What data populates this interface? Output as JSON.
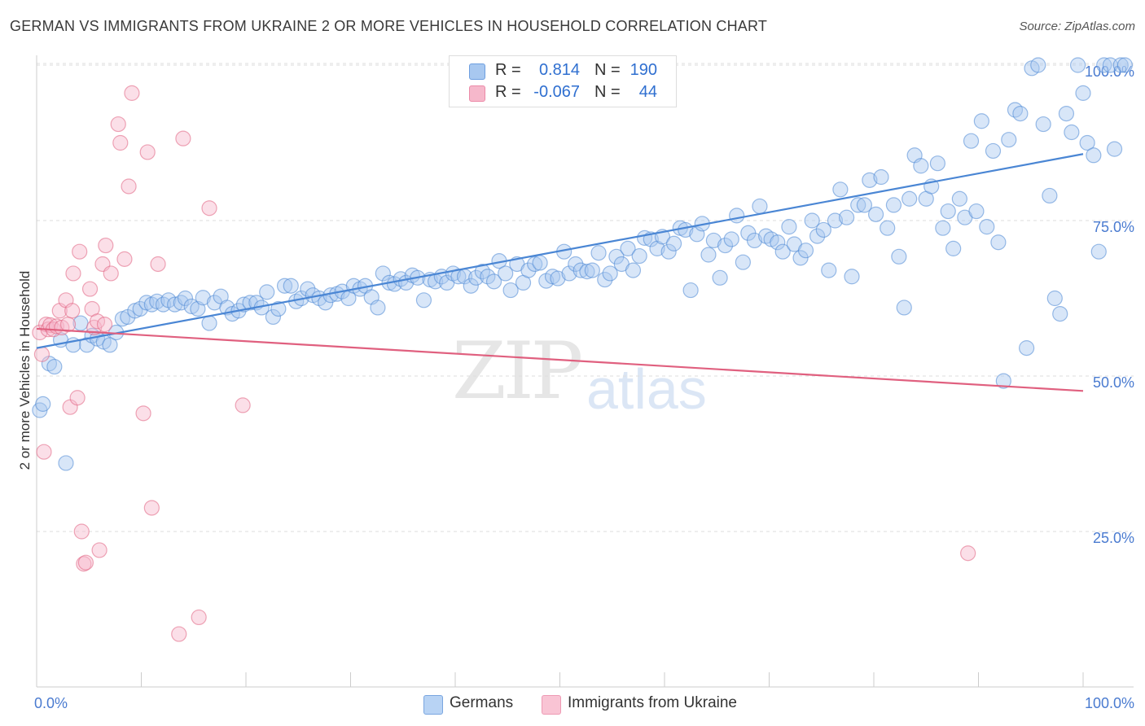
{
  "title": "GERMAN VS IMMIGRANTS FROM UKRAINE 2 OR MORE VEHICLES IN HOUSEHOLD CORRELATION CHART",
  "source": "Source: ZipAtlas.com",
  "watermark": {
    "zip": "ZIP",
    "atlas": "atlas"
  },
  "legend": {
    "rows": [
      {
        "r_label": "R =",
        "r_value": "0.814",
        "n_label": "N =",
        "n_value": "190",
        "color": "#a8c8f0"
      },
      {
        "r_label": "R =",
        "r_value": "-0.067",
        "n_label": "N =",
        "n_value": "44",
        "color": "#f6b8cb"
      }
    ]
  },
  "bottom_legend": [
    {
      "label": "Germans",
      "color": "#b8d3f4"
    },
    {
      "label": "Immigrants from Ukraine",
      "color": "#f9c4d4"
    }
  ],
  "chart_data": {
    "type": "scatter",
    "title": "GERMAN VS IMMIGRANTS FROM UKRAINE 2 OR MORE VEHICLES IN HOUSEHOLD CORRELATION CHART",
    "ylabel": "2 or more Vehicles in Household",
    "xlim": [
      0,
      100
    ],
    "ylim": [
      0,
      102
    ],
    "x_ticks": [
      "0.0%",
      "100.0%"
    ],
    "y_ticks": [
      {
        "value": 25,
        "label": "25.0%"
      },
      {
        "value": 50,
        "label": "50.0%"
      },
      {
        "value": 75,
        "label": "75.0%"
      },
      {
        "value": 100,
        "label": "100.0%"
      }
    ],
    "grid": true,
    "series": [
      {
        "name": "Germans",
        "color": "#4a86d4",
        "fill": "#a8c8f0",
        "trend": {
          "x": [
            0,
            100
          ],
          "y": [
            54.5,
            85.7
          ]
        },
        "points": [
          [
            0.3,
            44.5
          ],
          [
            0.6,
            45.5
          ],
          [
            1.2,
            52
          ],
          [
            1.7,
            51.5
          ],
          [
            2.3,
            55.8
          ],
          [
            2.8,
            36
          ],
          [
            3.5,
            55
          ],
          [
            4.2,
            58.5
          ],
          [
            4.8,
            55
          ],
          [
            5.3,
            56.5
          ],
          [
            5.8,
            56
          ],
          [
            6.4,
            55.5
          ],
          [
            7.0,
            55
          ],
          [
            7.6,
            57
          ],
          [
            8.2,
            59.2
          ],
          [
            8.7,
            59.5
          ],
          [
            9.4,
            60.5
          ],
          [
            9.9,
            60.8
          ],
          [
            10.5,
            61.8
          ],
          [
            11.0,
            61.5
          ],
          [
            11.5,
            62
          ],
          [
            12.1,
            61.5
          ],
          [
            12.6,
            62.2
          ],
          [
            13.2,
            61.5
          ],
          [
            13.8,
            61.8
          ],
          [
            14.2,
            62.5
          ],
          [
            14.8,
            61.2
          ],
          [
            15.4,
            60.8
          ],
          [
            15.9,
            62.6
          ],
          [
            16.5,
            58.5
          ],
          [
            17.0,
            61.8
          ],
          [
            17.6,
            62.8
          ],
          [
            18.2,
            61
          ],
          [
            18.7,
            60
          ],
          [
            19.3,
            60.5
          ],
          [
            19.8,
            61.5
          ],
          [
            20.4,
            61.8
          ],
          [
            21.0,
            61.8
          ],
          [
            21.5,
            61
          ],
          [
            22.0,
            63.5
          ],
          [
            22.6,
            59.5
          ],
          [
            23.1,
            60.8
          ],
          [
            23.7,
            64.5
          ],
          [
            24.3,
            64.5
          ],
          [
            24.8,
            62
          ],
          [
            25.3,
            62.5
          ],
          [
            25.9,
            64
          ],
          [
            26.4,
            63
          ],
          [
            27.0,
            62.5
          ],
          [
            27.6,
            61.8
          ],
          [
            28.1,
            63
          ],
          [
            28.7,
            63.2
          ],
          [
            29.2,
            63.6
          ],
          [
            29.8,
            62.5
          ],
          [
            30.3,
            64.5
          ],
          [
            30.9,
            64
          ],
          [
            31.4,
            64.5
          ],
          [
            32.0,
            62.7
          ],
          [
            32.6,
            61
          ],
          [
            33.1,
            66.5
          ],
          [
            33.7,
            65
          ],
          [
            34.2,
            64.8
          ],
          [
            34.8,
            65.6
          ],
          [
            35.3,
            65
          ],
          [
            35.9,
            66.2
          ],
          [
            36.4,
            65.8
          ],
          [
            37.0,
            62.2
          ],
          [
            37.6,
            65.5
          ],
          [
            38.1,
            65.2
          ],
          [
            38.7,
            66
          ],
          [
            39.2,
            65
          ],
          [
            39.8,
            66.5
          ],
          [
            40.3,
            66
          ],
          [
            40.9,
            66
          ],
          [
            41.5,
            64.5
          ],
          [
            42.0,
            65.8
          ],
          [
            42.6,
            66.8
          ],
          [
            43.1,
            66
          ],
          [
            43.7,
            65.2
          ],
          [
            44.2,
            68.5
          ],
          [
            44.8,
            66.5
          ],
          [
            45.3,
            63.8
          ],
          [
            45.9,
            68
          ],
          [
            46.5,
            65
          ],
          [
            47.0,
            67
          ],
          [
            47.6,
            68
          ],
          [
            48.1,
            68.2
          ],
          [
            48.7,
            65.3
          ],
          [
            49.3,
            66
          ],
          [
            49.8,
            65.7
          ],
          [
            50.4,
            70
          ],
          [
            50.9,
            66.5
          ],
          [
            51.5,
            68
          ],
          [
            52.0,
            67
          ],
          [
            52.6,
            66.8
          ],
          [
            53.1,
            67
          ],
          [
            53.7,
            69.8
          ],
          [
            54.3,
            65.5
          ],
          [
            54.8,
            66.5
          ],
          [
            55.4,
            69.2
          ],
          [
            55.9,
            68
          ],
          [
            56.5,
            70.5
          ],
          [
            57.0,
            67
          ],
          [
            57.6,
            69.3
          ],
          [
            58.1,
            72.2
          ],
          [
            58.7,
            72
          ],
          [
            59.3,
            70.5
          ],
          [
            59.8,
            72.4
          ],
          [
            60.4,
            70
          ],
          [
            60.9,
            71.3
          ],
          [
            61.5,
            73.8
          ],
          [
            62.0,
            73.5
          ],
          [
            62.5,
            63.8
          ],
          [
            63.1,
            72.8
          ],
          [
            63.6,
            74.5
          ],
          [
            64.2,
            69.5
          ],
          [
            64.7,
            71.8
          ],
          [
            65.3,
            65.8
          ],
          [
            65.8,
            71
          ],
          [
            66.4,
            72
          ],
          [
            66.9,
            75.8
          ],
          [
            67.5,
            68.3
          ],
          [
            68.0,
            73
          ],
          [
            68.6,
            71.8
          ],
          [
            69.1,
            77.3
          ],
          [
            69.7,
            72.5
          ],
          [
            70.2,
            72
          ],
          [
            70.8,
            71.5
          ],
          [
            71.3,
            70
          ],
          [
            71.9,
            74
          ],
          [
            72.4,
            71.2
          ],
          [
            73.0,
            69
          ],
          [
            73.5,
            70.2
          ],
          [
            74.1,
            75
          ],
          [
            74.6,
            72.5
          ],
          [
            75.2,
            73.5
          ],
          [
            75.7,
            67
          ],
          [
            76.3,
            75
          ],
          [
            76.8,
            80
          ],
          [
            77.4,
            75.5
          ],
          [
            77.9,
            66
          ],
          [
            78.5,
            77.5
          ],
          [
            79.1,
            77.5
          ],
          [
            79.6,
            81.5
          ],
          [
            80.2,
            76
          ],
          [
            80.7,
            82
          ],
          [
            81.3,
            73.8
          ],
          [
            81.9,
            77.5
          ],
          [
            82.4,
            69.2
          ],
          [
            82.9,
            61
          ],
          [
            83.4,
            78.5
          ],
          [
            83.9,
            85.5
          ],
          [
            84.5,
            83.8
          ],
          [
            85.0,
            78.5
          ],
          [
            85.5,
            80.5
          ],
          [
            86.1,
            84.2
          ],
          [
            86.6,
            73.8
          ],
          [
            87.1,
            76.5
          ],
          [
            87.6,
            70.5
          ],
          [
            88.2,
            78.5
          ],
          [
            88.7,
            75.5
          ],
          [
            89.3,
            87.8
          ],
          [
            89.8,
            76.5
          ],
          [
            90.3,
            91
          ],
          [
            90.8,
            74
          ],
          [
            91.4,
            86.2
          ],
          [
            91.9,
            71.5
          ],
          [
            92.4,
            49.2
          ],
          [
            92.9,
            88
          ],
          [
            93.5,
            92.8
          ],
          [
            94.0,
            92.2
          ],
          [
            94.6,
            54.5
          ],
          [
            95.1,
            99.5
          ],
          [
            95.7,
            100
          ],
          [
            96.2,
            90.5
          ],
          [
            96.8,
            79
          ],
          [
            97.3,
            62.5
          ],
          [
            97.8,
            60
          ],
          [
            98.4,
            92.2
          ],
          [
            98.9,
            89.2
          ],
          [
            99.5,
            100
          ],
          [
            100.0,
            95.5
          ],
          [
            100.4,
            87.5
          ],
          [
            101.0,
            85.5
          ],
          [
            101.5,
            70
          ],
          [
            102.0,
            100
          ],
          [
            102.6,
            100
          ],
          [
            103.0,
            86.5
          ],
          [
            103.6,
            100
          ],
          [
            104.0,
            100
          ]
        ]
      },
      {
        "name": "Immigrants from Ukraine",
        "color": "#e0607f",
        "fill": "#f6b8cb",
        "trend": {
          "x": [
            0,
            100
          ],
          "y": [
            57.6,
            47.6
          ]
        },
        "points": [
          [
            0.3,
            57
          ],
          [
            0.5,
            53.5
          ],
          [
            0.7,
            37.8
          ],
          [
            0.9,
            58.3
          ],
          [
            1.1,
            57.5
          ],
          [
            1.3,
            58.2
          ],
          [
            1.6,
            57.5
          ],
          [
            1.9,
            58
          ],
          [
            2.2,
            60.5
          ],
          [
            2.4,
            57.8
          ],
          [
            2.8,
            62.2
          ],
          [
            3.0,
            58.3
          ],
          [
            3.2,
            45
          ],
          [
            3.4,
            60.5
          ],
          [
            3.5,
            66.5
          ],
          [
            3.9,
            46.5
          ],
          [
            4.1,
            70
          ],
          [
            4.3,
            25
          ],
          [
            4.5,
            19.8
          ],
          [
            4.7,
            20
          ],
          [
            5.1,
            64
          ],
          [
            5.3,
            60.8
          ],
          [
            5.5,
            57.8
          ],
          [
            5.8,
            58.8
          ],
          [
            6.0,
            22
          ],
          [
            6.3,
            68
          ],
          [
            6.5,
            58.3
          ],
          [
            6.6,
            71
          ],
          [
            7.1,
            66.5
          ],
          [
            7.8,
            90.5
          ],
          [
            8.0,
            87.5
          ],
          [
            8.4,
            68.8
          ],
          [
            8.8,
            80.5
          ],
          [
            9.1,
            95.5
          ],
          [
            10.2,
            44
          ],
          [
            10.6,
            86
          ],
          [
            11.0,
            28.8
          ],
          [
            11.6,
            68
          ],
          [
            13.6,
            8.5
          ],
          [
            14.0,
            88.2
          ],
          [
            15.5,
            11.2
          ],
          [
            16.5,
            77
          ],
          [
            19.7,
            45.3
          ],
          [
            89.0,
            21.5
          ]
        ]
      }
    ]
  }
}
